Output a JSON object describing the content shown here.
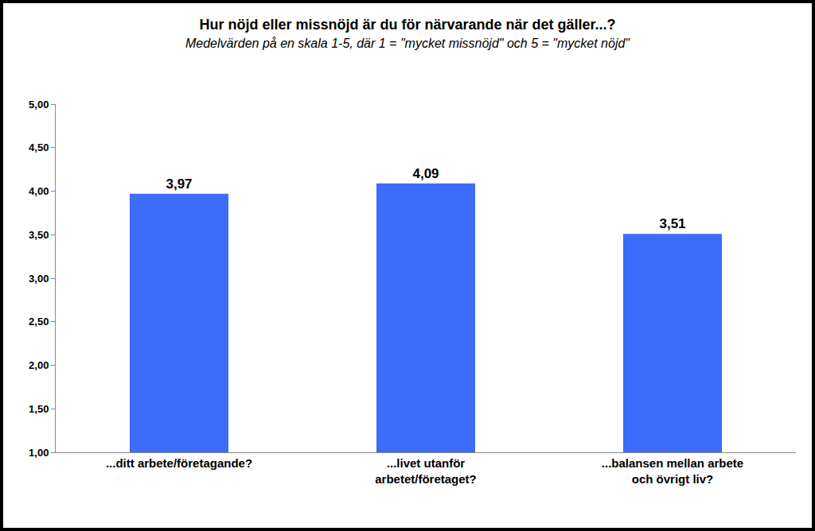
{
  "chart_data": {
    "type": "bar",
    "title": "Hur nöjd eller missnöjd är du för närvarande när det gäller...?",
    "subtitle": "Medelvärden på en skala 1-5, där 1 = \"mycket missnöjd\" och 5 = \"mycket nöjd\"",
    "categories": [
      "...ditt arbete/företagande?",
      "...livet utanför arbetet/företaget?",
      "...balansen mellan arbete och övrigt liv?"
    ],
    "values": [
      3.97,
      4.09,
      3.51
    ],
    "value_labels": [
      "3,97",
      "4,09",
      "3,51"
    ],
    "data_labels": true,
    "color": "#3d6bfa",
    "ylim": [
      1,
      5
    ],
    "yticks": [
      {
        "value": 1,
        "label": "1,00"
      },
      {
        "value": 1.5,
        "label": "1,50"
      },
      {
        "value": 2,
        "label": "2,00"
      },
      {
        "value": 2.5,
        "label": "2,50"
      },
      {
        "value": 3,
        "label": "3,00"
      },
      {
        "value": 3.5,
        "label": "3,50"
      },
      {
        "value": 4,
        "label": "4,00"
      },
      {
        "value": 4.5,
        "label": "4,50"
      },
      {
        "value": 5,
        "label": "5,00"
      }
    ],
    "grid": false
  }
}
